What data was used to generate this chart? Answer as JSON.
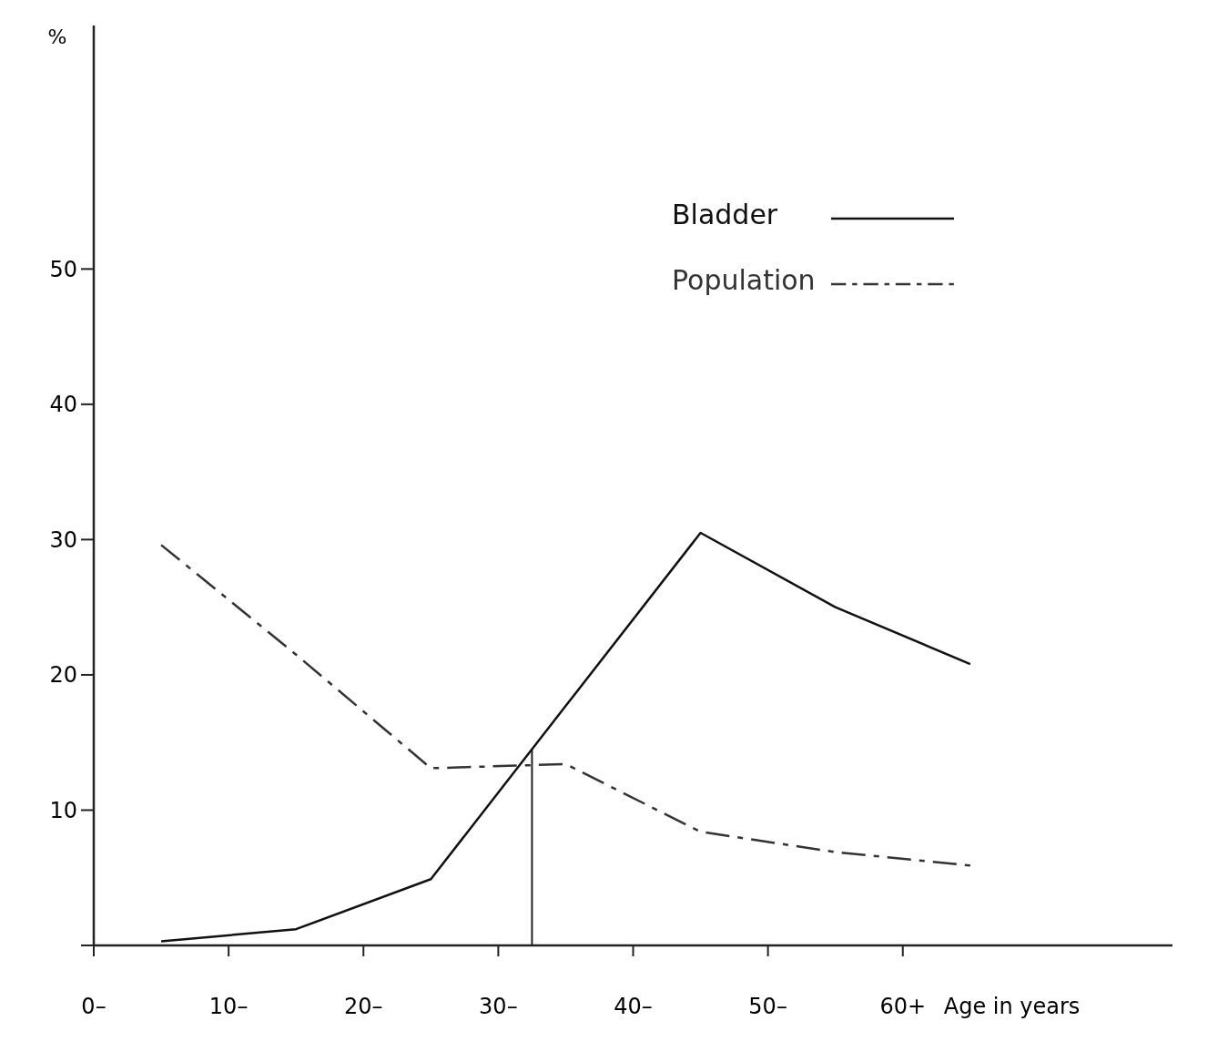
{
  "chart_data": {
    "type": "line",
    "ylabel": "%",
    "xlabel": "Age in years",
    "x": [
      5,
      15,
      25,
      35,
      45,
      55,
      65
    ],
    "series": [
      {
        "name": "Bladder",
        "color": "#111111",
        "line_style": "solid",
        "values": [
          0.3,
          1.2,
          4.9,
          17.7,
          30.5,
          25,
          20.8
        ]
      },
      {
        "name": "Population",
        "color": "#333333",
        "line_style": "dashed",
        "values": [
          29.6,
          21.5,
          13.1,
          13.4,
          8.4,
          6.9,
          5.9
        ]
      }
    ],
    "xlim": [
      0,
      80
    ],
    "xticks": [
      {
        "value": 0,
        "label": "0–"
      },
      {
        "value": 10,
        "label": "10–"
      },
      {
        "value": 20,
        "label": "20–"
      },
      {
        "value": 30,
        "label": "30–"
      },
      {
        "value": 40,
        "label": "40–"
      },
      {
        "value": 50,
        "label": "50–"
      },
      {
        "value": 60,
        "label": "60+"
      }
    ],
    "ylim": [
      0,
      68
    ],
    "yticks": [
      {
        "value": 0,
        "label": null
      },
      10,
      20,
      30,
      40,
      50
    ],
    "ref_lines": [
      {
        "axis": "x",
        "value": 32.5
      }
    ],
    "legend": "top right",
    "grid": false
  }
}
